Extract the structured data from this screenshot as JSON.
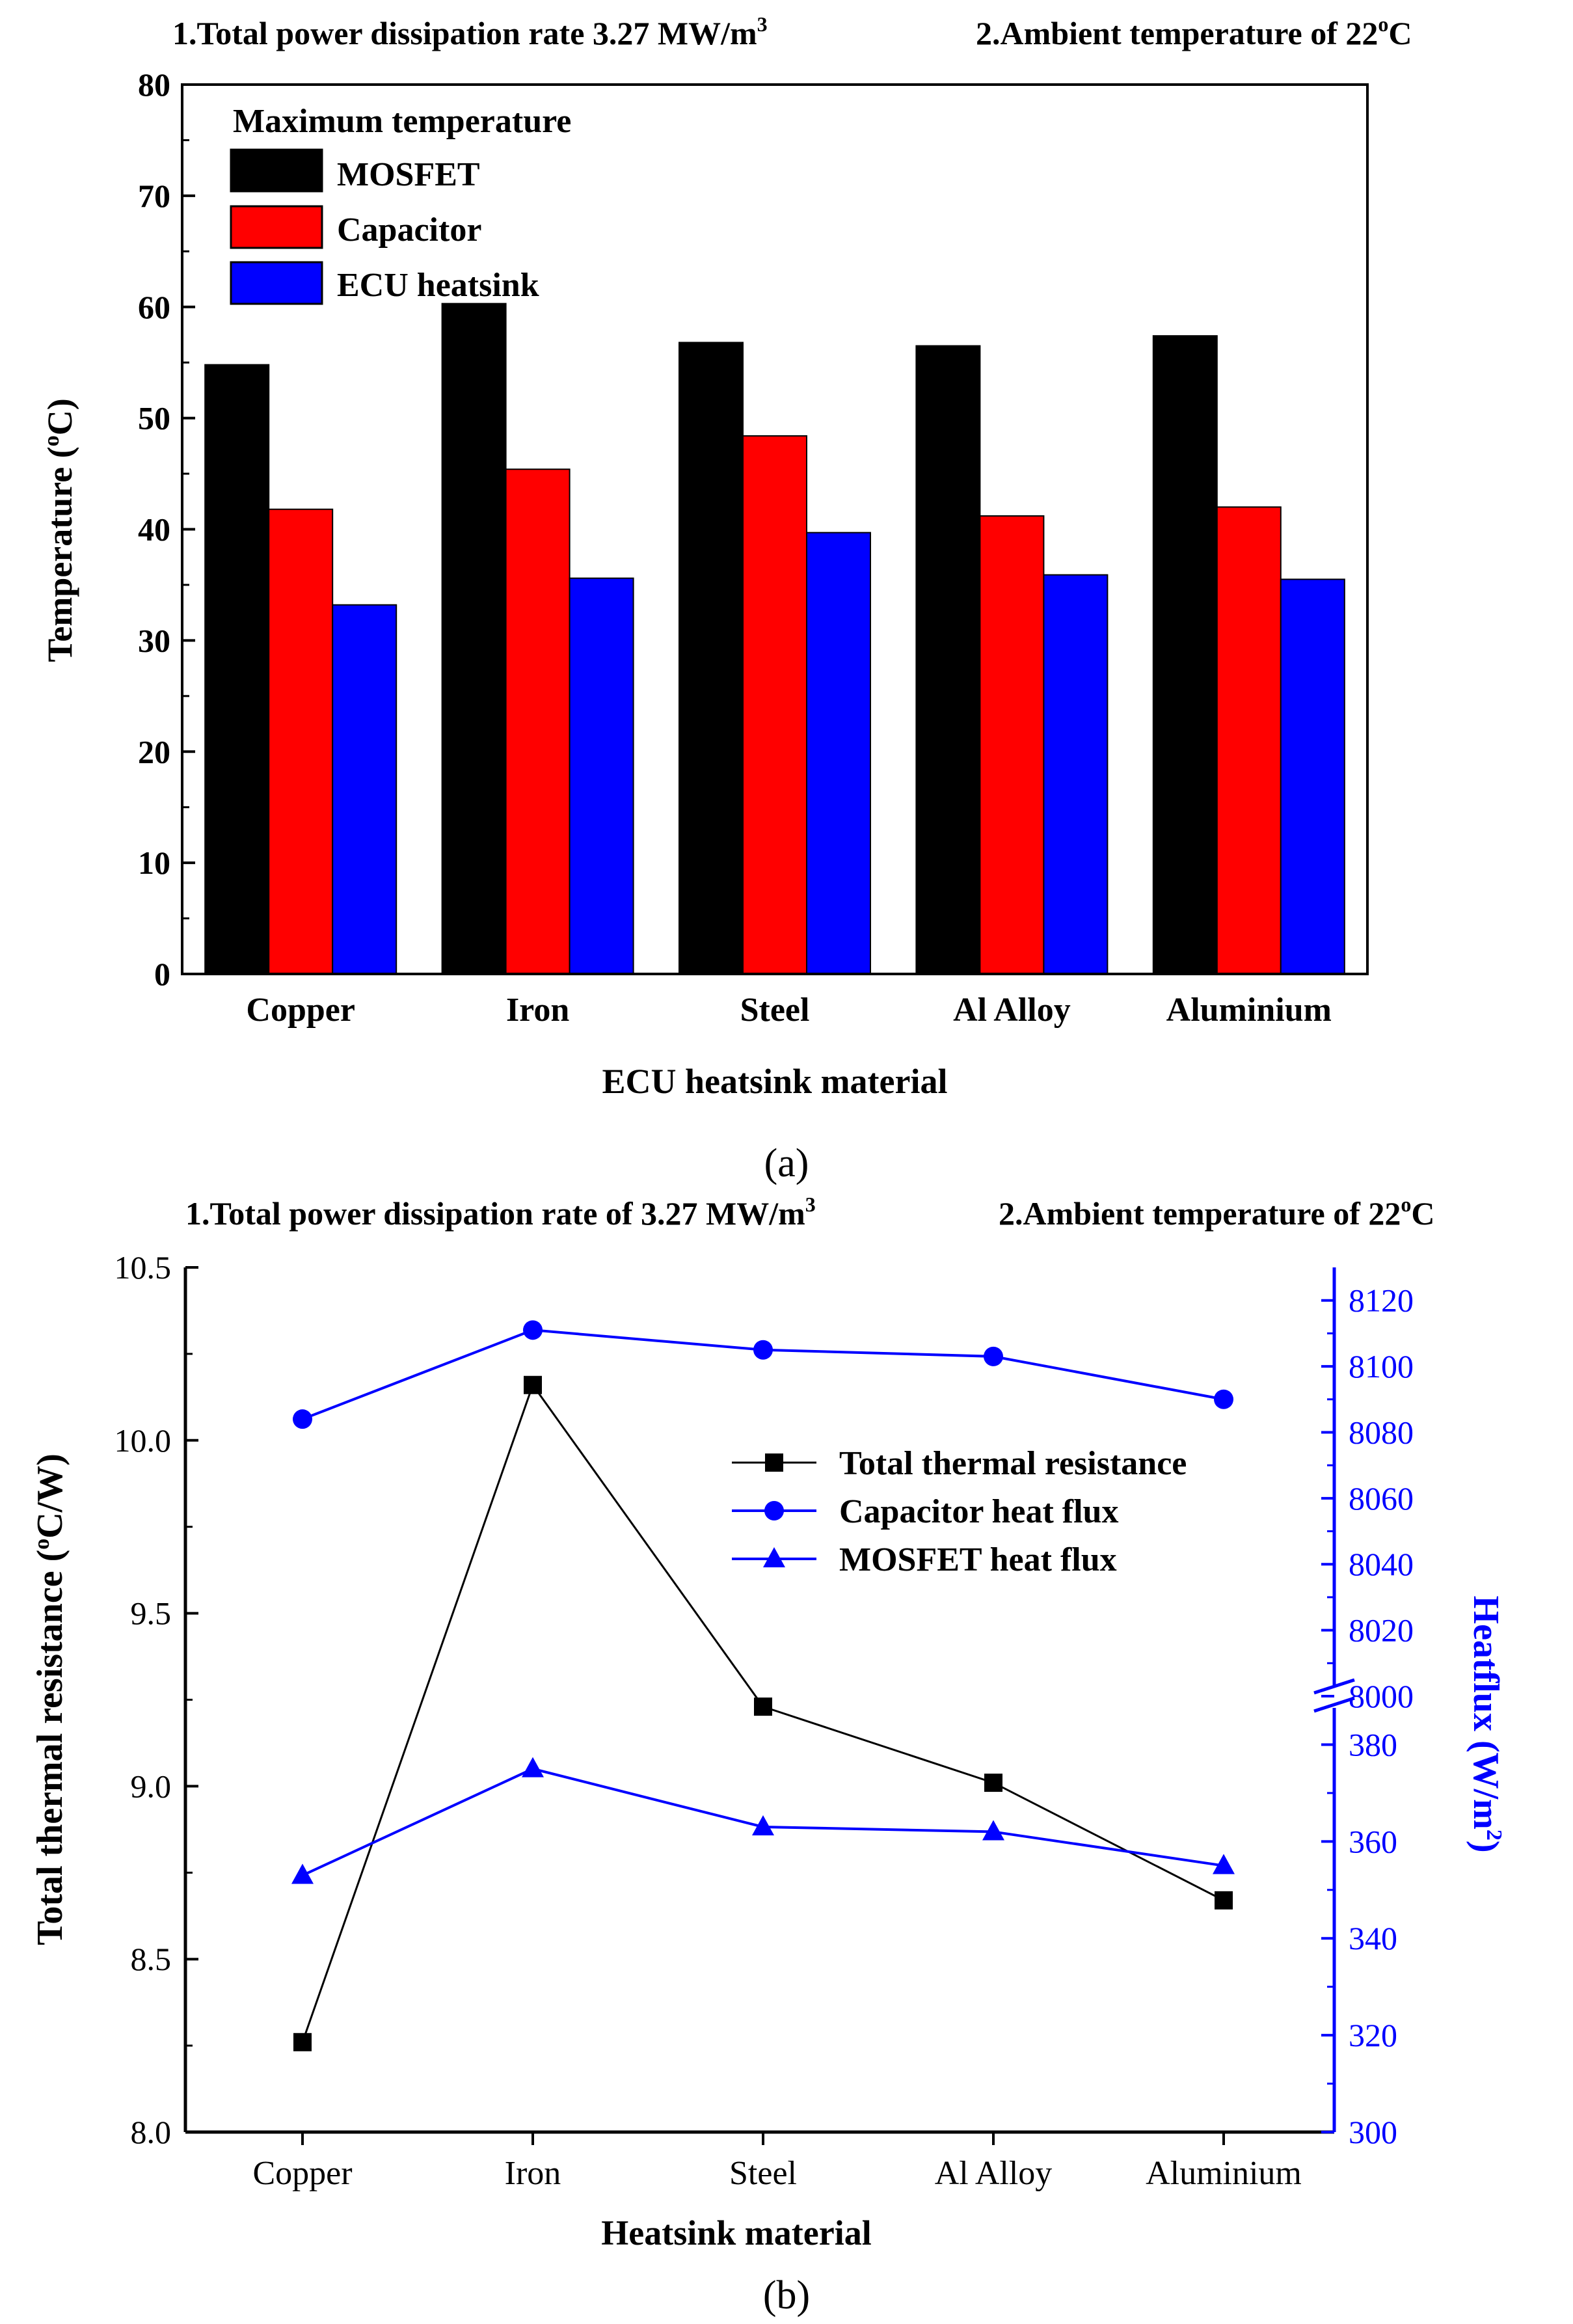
{
  "figure_a": {
    "note1": "1.Total power dissipation rate 3.27 MW/m",
    "note1_sup": "3",
    "note2": "2.Ambient temperature of 22",
    "note2_sup": "o",
    "note2_unit": "C",
    "caption": "(a)"
  },
  "figure_b": {
    "note1": "1.Total power dissipation rate of 3.27 MW/m",
    "note1_sup": "3",
    "note2": "2.Ambient temperature of 22",
    "note2_sup": "o",
    "note2_unit": "C",
    "caption": "(b)"
  },
  "chart_data": [
    {
      "type": "bar",
      "title": "",
      "xlabel": "ECU heatsink material",
      "ylabel_prefix": "Temperature (",
      "ylabel_sup": "o",
      "ylabel_suffix": "C)",
      "ylim": [
        0,
        80
      ],
      "yticks": [
        0,
        10,
        20,
        30,
        40,
        50,
        60,
        70,
        80
      ],
      "categories": [
        "Copper",
        "Iron",
        "Steel",
        "Al Alloy",
        "Aluminium"
      ],
      "legend_title": "Maximum temperature",
      "legend_position": "top-left",
      "series": [
        {
          "name": "MOSFET",
          "color": "#000000",
          "values": [
            54.8,
            60.3,
            56.8,
            56.5,
            57.4
          ]
        },
        {
          "name": "Capacitor",
          "color": "#ff0000",
          "values": [
            41.8,
            45.4,
            48.4,
            41.2,
            42.0
          ]
        },
        {
          "name": "ECU heatsink",
          "color": "#0000ff",
          "values": [
            33.2,
            35.6,
            39.7,
            35.9,
            35.5
          ]
        }
      ]
    },
    {
      "type": "line",
      "xlabel": "Heatsink material",
      "categories": [
        "Copper",
        "Iron",
        "Steel",
        "Al Alloy",
        "Aluminium"
      ],
      "left_axis": {
        "label_prefix": "Total thermal resistance (",
        "label_sup": "o",
        "label_suffix": "C/W)",
        "ylim": [
          8.0,
          10.5
        ],
        "ticks": [
          "8.0",
          "8.5",
          "9.0",
          "9.5",
          "10.0",
          "10.5"
        ]
      },
      "right_axis": {
        "label_prefix": "Heatflux (W/m",
        "label_sup": "2",
        "label_suffix": ")",
        "color": "#0000ff",
        "broken": true,
        "lower_range": [
          300,
          390
        ],
        "upper_range": [
          8000,
          8130
        ],
        "lower_ticks": [
          "300",
          "320",
          "340",
          "360",
          "380"
        ],
        "upper_ticks": [
          "8000",
          "8020",
          "8040",
          "8060",
          "8080",
          "8100",
          "8120"
        ]
      },
      "legend_position": "upper-right",
      "series": [
        {
          "name": "Total thermal resistance",
          "axis": "left",
          "color": "#000000",
          "marker": "square",
          "values": [
            8.26,
            10.16,
            9.23,
            9.01,
            8.67
          ]
        },
        {
          "name": "Capacitor heat flux",
          "axis": "right",
          "color": "#0000ff",
          "marker": "circle",
          "values": [
            8084,
            8111,
            8105,
            8103,
            8090
          ]
        },
        {
          "name": "MOSFET heat flux",
          "axis": "right",
          "color": "#0000ff",
          "marker": "triangle",
          "values": [
            353,
            375,
            363,
            362,
            355
          ]
        }
      ]
    }
  ]
}
